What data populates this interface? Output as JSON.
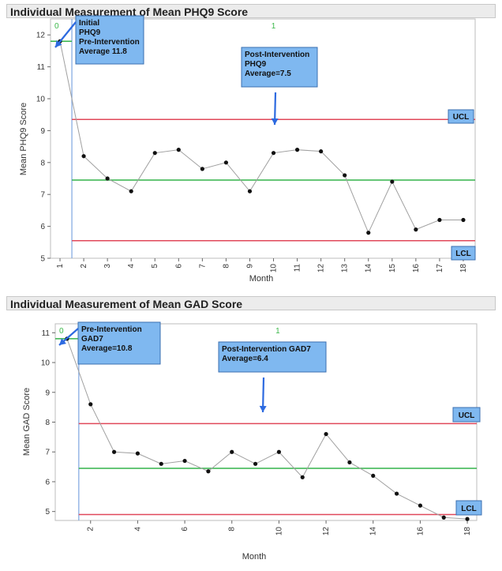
{
  "chart_data": [
    {
      "type": "line",
      "title": "Individual Measurement of Mean PHQ9 Score",
      "xlabel": "Month",
      "ylabel": "Mean PHQ9 Score",
      "xlim": [
        0.6,
        18.5
      ],
      "ylim": [
        5,
        12.5
      ],
      "xticks": [
        1,
        2,
        3,
        4,
        5,
        6,
        7,
        8,
        9,
        10,
        11,
        12,
        13,
        14,
        15,
        16,
        17,
        18
      ],
      "yticks": [
        5,
        6,
        7,
        8,
        9,
        10,
        11,
        12
      ],
      "x": [
        1,
        2,
        3,
        4,
        5,
        6,
        7,
        8,
        9,
        10,
        11,
        12,
        13,
        14,
        15,
        16,
        17,
        18
      ],
      "values": [
        11.8,
        8.2,
        7.5,
        7.1,
        8.3,
        8.4,
        7.8,
        8.0,
        7.1,
        8.3,
        8.4,
        8.35,
        7.6,
        5.8,
        7.4,
        5.9,
        6.2,
        6.2
      ],
      "phase_split": 1.5,
      "phases": [
        {
          "label": "0",
          "x_start": 0.6,
          "x_end": 1.5,
          "center": 11.8
        },
        {
          "label": "1",
          "x_start": 1.5,
          "x_end": 18.5,
          "center": 7.45,
          "ucl": 9.35,
          "lcl": 5.55
        }
      ],
      "limit_labels": {
        "ucl": "UCL",
        "lcl": "LCL"
      },
      "callouts": [
        {
          "lines": [
            "Initial",
            "PHQ9",
            "Pre-Intervention",
            "Average 11.8"
          ]
        },
        {
          "lines": [
            "Post-Intervention",
            "PHQ9",
            "Average=7.5"
          ]
        }
      ]
    },
    {
      "type": "line",
      "title": "Individual Measurement of Mean GAD Score",
      "xlabel": "Month",
      "ylabel": "Mean GAD Score",
      "xlim": [
        0.5,
        18.4
      ],
      "ylim": [
        4.7,
        11.3
      ],
      "xticks": [
        2,
        4,
        6,
        8,
        10,
        12,
        14,
        16,
        18
      ],
      "yticks": [
        5,
        6,
        7,
        8,
        9,
        10,
        11
      ],
      "x": [
        1,
        2,
        3,
        4,
        5,
        6,
        7,
        8,
        9,
        10,
        11,
        12,
        13,
        14,
        15,
        16,
        17,
        18
      ],
      "values": [
        10.8,
        8.6,
        7.0,
        6.95,
        6.6,
        6.7,
        6.35,
        7.0,
        6.6,
        7.0,
        6.15,
        7.6,
        6.65,
        6.2,
        5.6,
        5.2,
        4.8,
        4.75
      ],
      "phase_split": 1.5,
      "phases": [
        {
          "label": "0",
          "x_start": 0.5,
          "x_end": 1.5,
          "center": 10.8
        },
        {
          "label": "1",
          "x_start": 1.5,
          "x_end": 18.4,
          "center": 6.45,
          "ucl": 7.95,
          "lcl": 4.9
        }
      ],
      "limit_labels": {
        "ucl": "UCL",
        "lcl": "LCL"
      },
      "callouts": [
        {
          "lines": [
            "Pre-Intervention",
            "GAD7",
            "Average=10.8"
          ]
        },
        {
          "lines": [
            "Post-Intervention GAD7",
            "Average=6.4"
          ]
        }
      ]
    }
  ]
}
